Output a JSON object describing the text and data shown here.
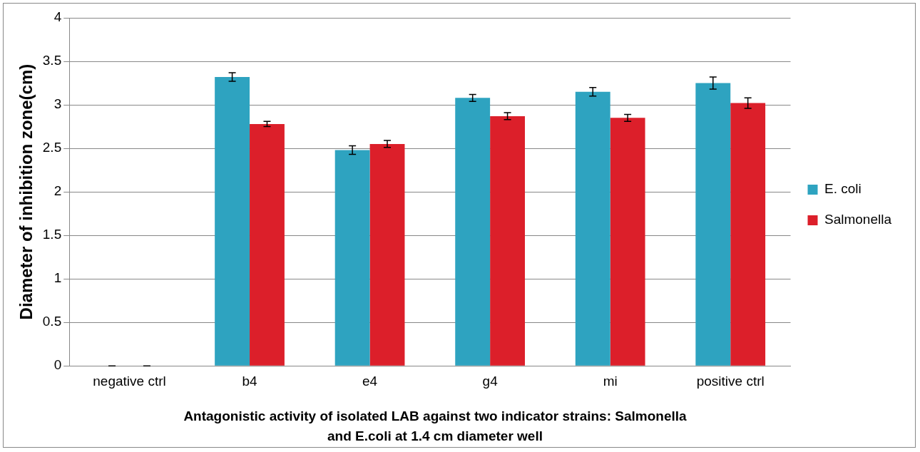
{
  "chart_data": {
    "type": "bar",
    "xlabel": "Antagonistic activity of isolated LAB against two indicator strains: Salmonella and E.coli at 1.4 cm diameter well",
    "ylabel": "Diameter of inhibition zone(cm)",
    "categories": [
      "negative ctrl",
      "b4",
      "e4",
      "g4",
      "mi",
      "positive ctrl"
    ],
    "series": [
      {
        "name": "E. coli",
        "color": "#2ea3c0",
        "values": [
          0,
          3.32,
          2.48,
          3.08,
          3.15,
          3.25
        ],
        "errors": [
          0,
          0.05,
          0.05,
          0.04,
          0.05,
          0.07
        ]
      },
      {
        "name": "Salmonella",
        "color": "#dc1f2a",
        "values": [
          0,
          2.78,
          2.55,
          2.87,
          2.85,
          3.02
        ],
        "errors": [
          0,
          0.03,
          0.04,
          0.04,
          0.04,
          0.06
        ]
      }
    ],
    "ylim": [
      0,
      4
    ],
    "yticks": [
      0,
      0.5,
      1,
      1.5,
      2,
      2.5,
      3,
      3.5,
      4
    ],
    "grid": "y",
    "legend": "right"
  }
}
